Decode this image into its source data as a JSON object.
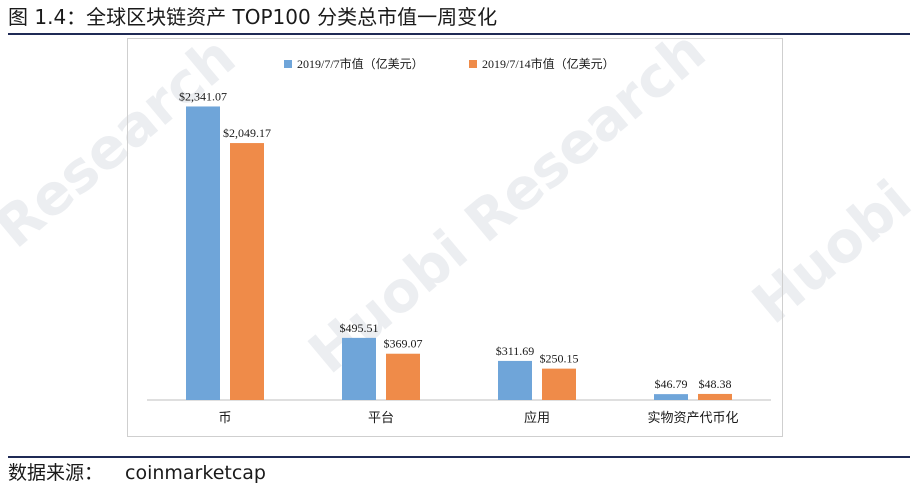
{
  "figure": {
    "title": "图 1.4：全球区块链资产 TOP100 分类总市值一周变化",
    "source_label": "数据来源：",
    "source_value": "coinmarketcap"
  },
  "watermarks": [
    "Research",
    "Huobi Research",
    "Huobi"
  ],
  "colors": {
    "series1": "#6fa5d9",
    "series2": "#ef8b49",
    "axis": "#bfbfbf",
    "rule": "#1f2a55"
  },
  "chart_data": {
    "type": "bar",
    "categories": [
      "币",
      "平台",
      "应用",
      "实物资产代币化"
    ],
    "series": [
      {
        "name": "2019/7/7市值（亿美元）",
        "values": [
          2341.07,
          495.51,
          311.69,
          46.79
        ],
        "labels": [
          "$2,341.07",
          "$495.51",
          "$311.69",
          "$46.79"
        ]
      },
      {
        "name": "2019/7/14市值（亿美元）",
        "values": [
          2049.17,
          369.07,
          250.15,
          48.38
        ],
        "labels": [
          "$2,049.17",
          "$369.07",
          "$250.15",
          "$48.38"
        ]
      }
    ],
    "ylim": [
      0,
      2600
    ],
    "legend": "top-center",
    "grid": false,
    "y_axis_visible": false
  }
}
